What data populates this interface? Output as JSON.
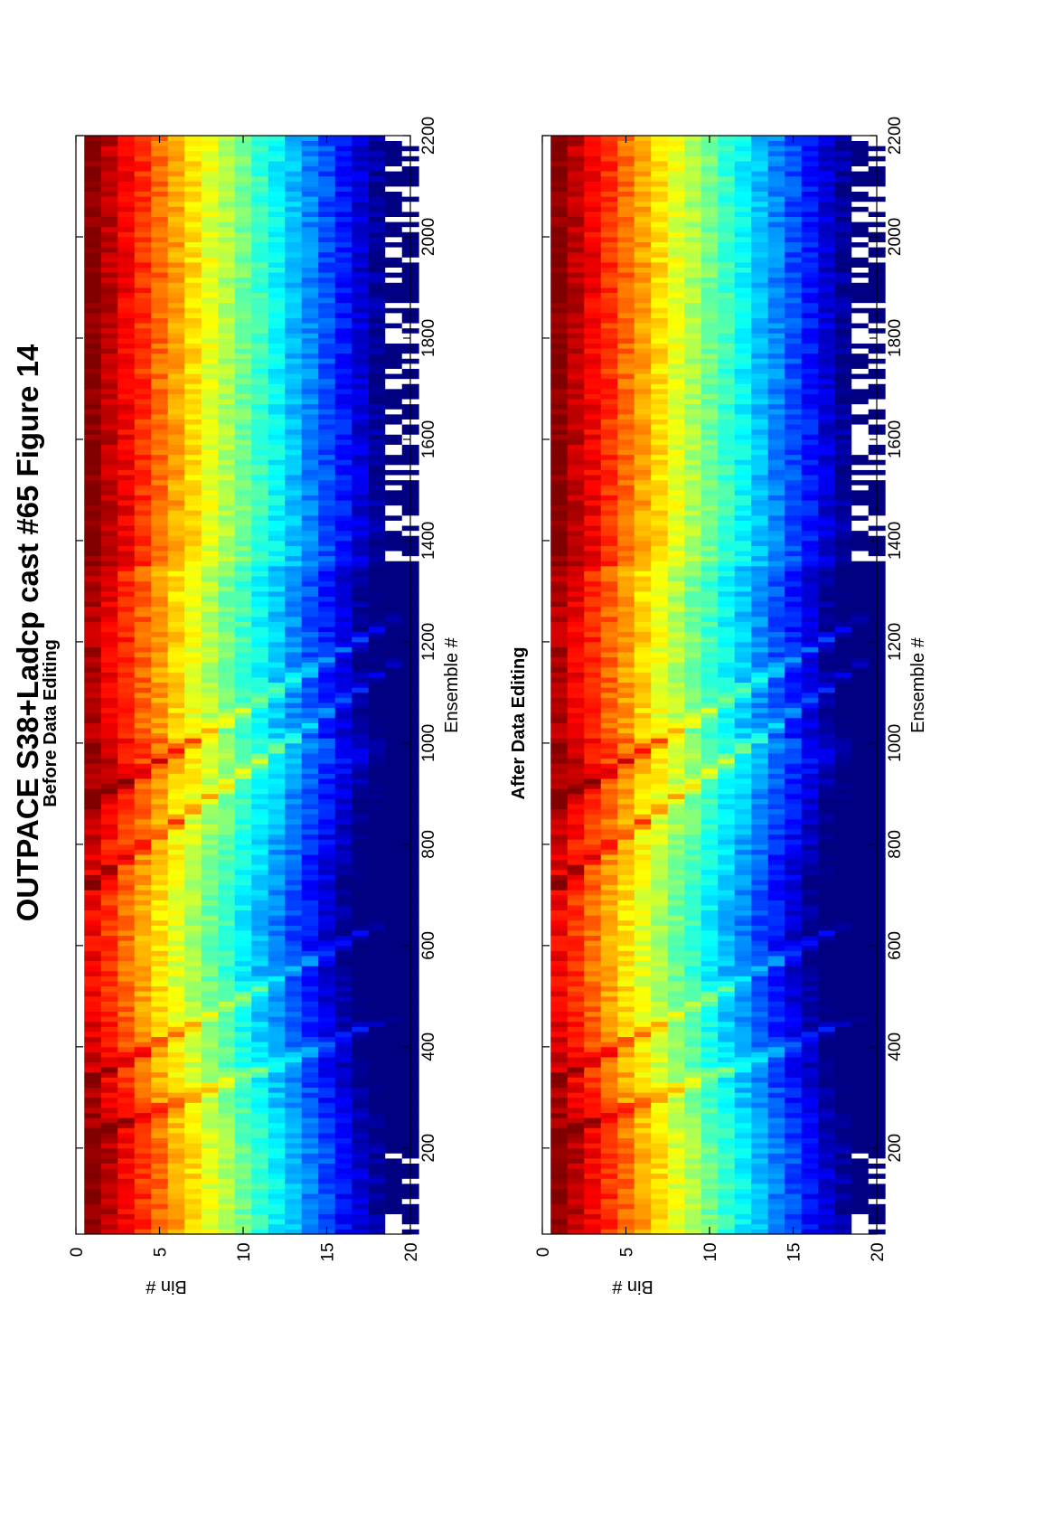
{
  "figure": {
    "title": "OUTPACE S38+Ladcp cast #65  Figure 14"
  },
  "colors": {
    "background": "#ffffff",
    "axes": "#000000",
    "colormap": "jet",
    "missing_data": "#ffffff"
  },
  "chart_data": [
    {
      "type": "heatmap",
      "title": "Before Data Editing",
      "xlabel": "Ensemble #",
      "ylabel": "Bin #",
      "xlim": [
        30,
        2200
      ],
      "ylim": [
        0,
        20
      ],
      "x_reversed": true,
      "x_ticks": [
        200,
        400,
        600,
        800,
        1000,
        1200,
        1400,
        1600,
        1800,
        2000,
        2200
      ],
      "y_ticks": [
        0,
        5,
        10,
        15,
        20
      ],
      "x_tick_labels": [
        "200",
        "400",
        "600",
        "800",
        "1000",
        "1200",
        "1400",
        "1600",
        "1800",
        "2000",
        "2200"
      ],
      "y_tick_labels": [
        "0",
        "5",
        "10",
        "15",
        "20"
      ],
      "bins": [
        1,
        20
      ],
      "ensembles": [
        30,
        2200
      ],
      "value_trend": "highest at bin 1, decreasing with bin number; stripe features near ensembles 180-280, 300-400, 700-1000; gaps (missing data) in bins 19-20 near ensembles 30-200 and 1350-2200",
      "grid": false
    },
    {
      "type": "heatmap",
      "title": "After Data Editing",
      "xlabel": "Ensemble #",
      "ylabel": "Bin #",
      "xlim": [
        30,
        2200
      ],
      "ylim": [
        0,
        20
      ],
      "x_reversed": true,
      "x_ticks": [
        200,
        400,
        600,
        800,
        1000,
        1200,
        1400,
        1600,
        1800,
        2000,
        2200
      ],
      "y_ticks": [
        0,
        5,
        10,
        15,
        20
      ],
      "x_tick_labels": [
        "200",
        "400",
        "600",
        "800",
        "1000",
        "1200",
        "1400",
        "1600",
        "1800",
        "2000",
        "2200"
      ],
      "y_tick_labels": [
        "0",
        "5",
        "10",
        "15",
        "20"
      ],
      "bins": [
        1,
        20
      ],
      "ensembles": [
        30,
        2200
      ],
      "value_trend": "same as before editing with more missing data removed in bins 18-20",
      "grid": false
    }
  ]
}
